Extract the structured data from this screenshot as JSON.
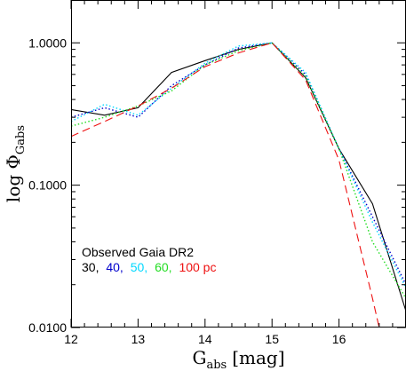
{
  "chart_data": {
    "type": "line",
    "title": "",
    "xlabel": {
      "main": "G",
      "sub": "abs",
      "unit": "[mag]"
    },
    "ylabel": {
      "main": "log Φ",
      "sub": "Gabs"
    },
    "xlim": [
      12,
      17
    ],
    "ylim": [
      0.01,
      2.0
    ],
    "yscale": "log",
    "xticks": [
      {
        "value": 12,
        "label": "12"
      },
      {
        "value": 13,
        "label": "13"
      },
      {
        "value": 14,
        "label": "14"
      },
      {
        "value": 15,
        "label": "15"
      },
      {
        "value": 16,
        "label": "16"
      }
    ],
    "yticks": [
      {
        "value": 1.0,
        "label": "1.0000"
      },
      {
        "value": 0.1,
        "label": "0.1000"
      },
      {
        "value": 0.01,
        "label": "0.0100"
      }
    ],
    "grid": false,
    "legend": {
      "placement": "bottom-left",
      "title": "Observed Gaia DR2",
      "entries": [
        {
          "text": "30,",
          "color": "#000000"
        },
        {
          "text": "40,",
          "color": "#0000cc"
        },
        {
          "text": "50,",
          "color": "#00d8ff"
        },
        {
          "text": "60,",
          "color": "#22dd22"
        },
        {
          "text": "100 pc",
          "color": "#ee1111"
        }
      ]
    },
    "series": [
      {
        "color": "#000000",
        "dash": "solid",
        "x": [
          12.0,
          12.5,
          13.0,
          13.5,
          14.0,
          14.5,
          15.0,
          15.5,
          16.0,
          16.5,
          17.0
        ],
        "y": [
          0.34,
          0.31,
          0.35,
          0.62,
          0.75,
          0.9,
          1.0,
          0.57,
          0.18,
          0.074,
          0.013
        ]
      },
      {
        "color": "#0000cc",
        "dash": "dotted",
        "x": [
          12.0,
          12.5,
          13.0,
          13.5,
          14.0,
          14.5,
          15.0,
          15.5,
          16.0,
          16.5,
          17.0
        ],
        "y": [
          0.3,
          0.35,
          0.3,
          0.5,
          0.7,
          0.92,
          1.0,
          0.6,
          0.18,
          0.06,
          0.02
        ]
      },
      {
        "color": "#00d8ff",
        "dash": "dotted",
        "x": [
          12.0,
          12.5,
          13.0,
          13.5,
          14.0,
          14.5,
          15.0,
          15.5,
          16.0,
          16.5,
          17.0
        ],
        "y": [
          0.28,
          0.37,
          0.31,
          0.48,
          0.72,
          0.95,
          1.0,
          0.62,
          0.18,
          0.055,
          0.019
        ]
      },
      {
        "color": "#22dd22",
        "dash": "dotted",
        "x": [
          12.0,
          12.5,
          13.0,
          13.5,
          14.0,
          14.5,
          15.0,
          15.5,
          16.0,
          16.5,
          17.0
        ],
        "y": [
          0.26,
          0.3,
          0.36,
          0.46,
          0.7,
          0.88,
          1.0,
          0.58,
          0.18,
          0.04,
          0.016
        ]
      },
      {
        "color": "#ee1111",
        "dash": "dashed",
        "x": [
          12.0,
          12.5,
          13.0,
          13.5,
          14.0,
          14.5,
          15.0,
          15.5,
          16.0,
          16.5,
          16.6
        ],
        "y": [
          0.22,
          0.28,
          0.36,
          0.48,
          0.68,
          0.85,
          1.0,
          0.55,
          0.15,
          0.016,
          0.01
        ]
      }
    ]
  }
}
